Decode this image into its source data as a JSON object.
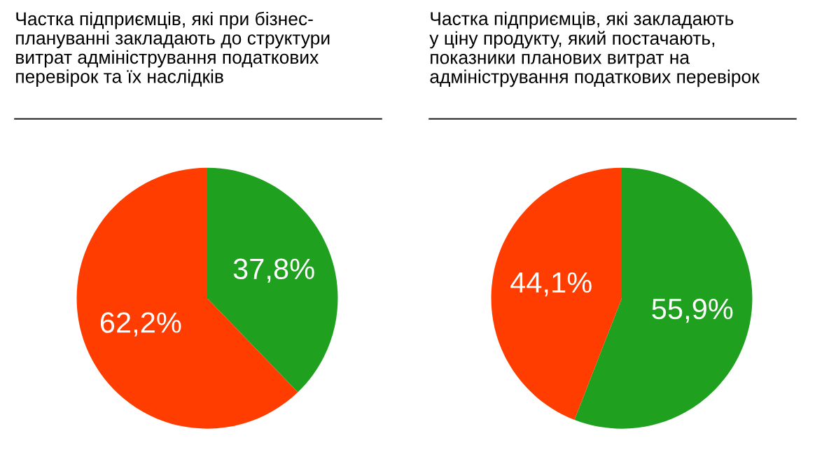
{
  "chart_data": [
    {
      "type": "pie",
      "title": "Частка підприємців, які при бізнес-\nплануванні закладають до структури\nвитрат адміністрування податкових\nперевірок та їх наслідків",
      "categories": [
        null,
        null
      ],
      "values": [
        37.8,
        62.2
      ],
      "colors": [
        "#1fa01f",
        "#ff3d00"
      ],
      "value_labels": [
        "37,8%",
        "62,2%"
      ]
    },
    {
      "type": "pie",
      "title": "Частка підприємців, які закладають\nу ціну продукту, який постачають,\nпоказники планових витрат на\nадміністрування податкових перевірок",
      "categories": [
        null,
        null
      ],
      "values": [
        55.9,
        44.1
      ],
      "colors": [
        "#1fa01f",
        "#ff3d00"
      ],
      "value_labels": [
        "55,9%",
        "44,1%"
      ]
    }
  ]
}
